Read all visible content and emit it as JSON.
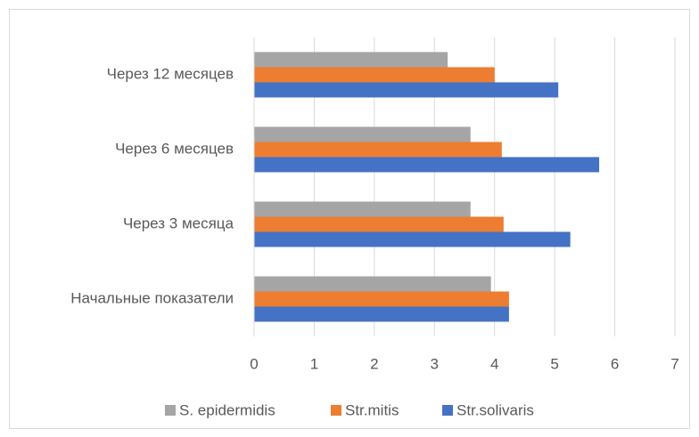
{
  "chart_data": {
    "type": "barh",
    "categories": [
      "Начальные показатели",
      "Через 3 месяца",
      "Через 6 месяцев",
      "Через 12 месяцев"
    ],
    "series": [
      {
        "name": "S. epidermidis",
        "color": "#a5a5a5",
        "values": [
          3.94,
          3.6,
          3.6,
          3.22
        ]
      },
      {
        "name": "Str.mitis",
        "color": "#ed7d31",
        "values": [
          4.24,
          4.15,
          4.12,
          4.0
        ]
      },
      {
        "name": "Str.solivaris",
        "color": "#4472c4",
        "values": [
          4.24,
          5.26,
          5.74,
          5.06
        ]
      }
    ],
    "xlim": [
      0,
      7
    ],
    "xticks": [
      0,
      1,
      2,
      3,
      4,
      5,
      6,
      7
    ],
    "grid": true,
    "legend": "bottom"
  }
}
